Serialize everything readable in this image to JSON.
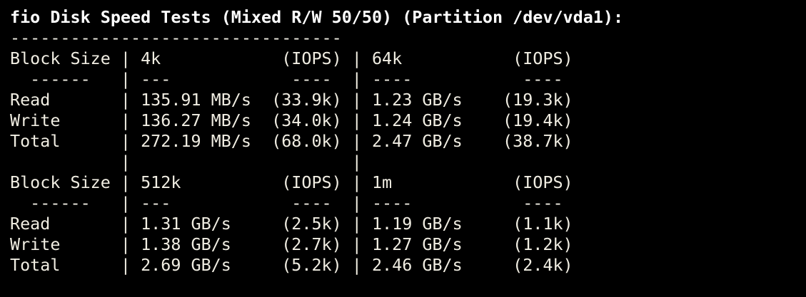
{
  "colors": {
    "background": "#000000",
    "foreground": "#F0EDE2",
    "title": "#FFFFFF"
  },
  "test_info": {
    "tool": "fio",
    "test_name": "Disk Speed Tests",
    "mode": "Mixed R/W 50/50",
    "partition": "/dev/vda1"
  },
  "terminal": {
    "lines": [
      "fio Disk Speed Tests (Mixed R/W 50/50) (Partition /dev/vda1):",
      "---------------------------------",
      "Block Size | 4k            (IOPS) | 64k           (IOPS)",
      "  ------   | ---            ----  | ----           ----",
      "Read       | 135.91 MB/s  (33.9k) | 1.23 GB/s    (19.3k)",
      "Write      | 136.27 MB/s  (34.0k) | 1.24 GB/s    (19.4k)",
      "Total      | 272.19 MB/s  (68.0k) | 2.47 GB/s    (38.7k)",
      "           |                      |",
      "Block Size | 512k          (IOPS) | 1m            (IOPS)",
      "  ------   | ---            ----  | ----           ----",
      "Read       | 1.31 GB/s     (2.5k) | 1.19 GB/s     (1.1k)",
      "Write      | 1.38 GB/s     (2.7k) | 1.27 GB/s     (1.2k)",
      "Total      | 2.69 GB/s     (5.2k) | 2.46 GB/s     (2.4k)"
    ]
  },
  "disk_results": {
    "row_labels": [
      "Read",
      "Write",
      "Total"
    ],
    "blocks": [
      {
        "block_sizes": [
          "4k",
          "64k"
        ],
        "rows": [
          {
            "label": "Read",
            "col1_speed": "135.91 MB/s",
            "col1_iops": "33.9k",
            "col2_speed": "1.23 GB/s",
            "col2_iops": "19.3k"
          },
          {
            "label": "Write",
            "col1_speed": "136.27 MB/s",
            "col1_iops": "34.0k",
            "col2_speed": "1.24 GB/s",
            "col2_iops": "19.4k"
          },
          {
            "label": "Total",
            "col1_speed": "272.19 MB/s",
            "col1_iops": "68.0k",
            "col2_speed": "2.47 GB/s",
            "col2_iops": "38.7k"
          }
        ]
      },
      {
        "block_sizes": [
          "512k",
          "1m"
        ],
        "rows": [
          {
            "label": "Read",
            "col1_speed": "1.31 GB/s",
            "col1_iops": "2.5k",
            "col2_speed": "1.19 GB/s",
            "col2_iops": "1.1k"
          },
          {
            "label": "Write",
            "col1_speed": "1.38 GB/s",
            "col1_iops": "2.7k",
            "col2_speed": "1.27 GB/s",
            "col2_iops": "1.2k"
          },
          {
            "label": "Total",
            "col1_speed": "2.69 GB/s",
            "col1_iops": "5.2k",
            "col2_speed": "2.46 GB/s",
            "col2_iops": "2.4k"
          }
        ]
      }
    ]
  }
}
